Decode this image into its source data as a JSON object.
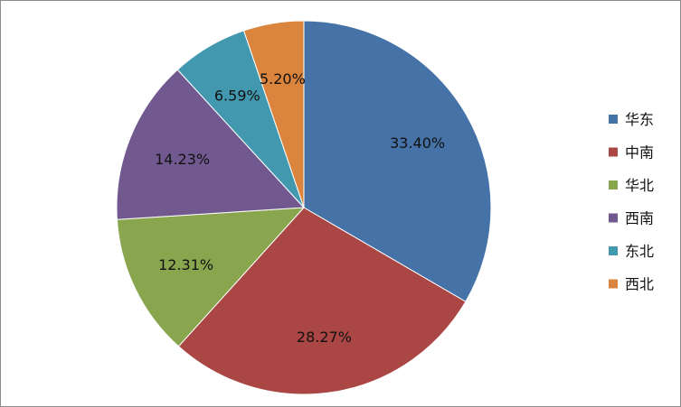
{
  "chart_data": {
    "type": "pie",
    "title": "",
    "categories": [
      "华东",
      "中南",
      "华北",
      "西南",
      "东北",
      "西北"
    ],
    "values": [
      33.4,
      28.27,
      12.31,
      14.23,
      6.59,
      5.2
    ],
    "value_labels": [
      "33.40%",
      "28.27%",
      "12.31%",
      "14.23%",
      "6.59%",
      "5.20%"
    ],
    "draw_order": [
      0,
      1,
      2,
      3,
      4,
      5
    ],
    "colors": [
      "#4572a7",
      "#aa4643",
      "#89a54e",
      "#71588f",
      "#4198af",
      "#db843d"
    ],
    "start_angle_deg": 0,
    "direction": "clockwise",
    "legend_placement": "right"
  }
}
